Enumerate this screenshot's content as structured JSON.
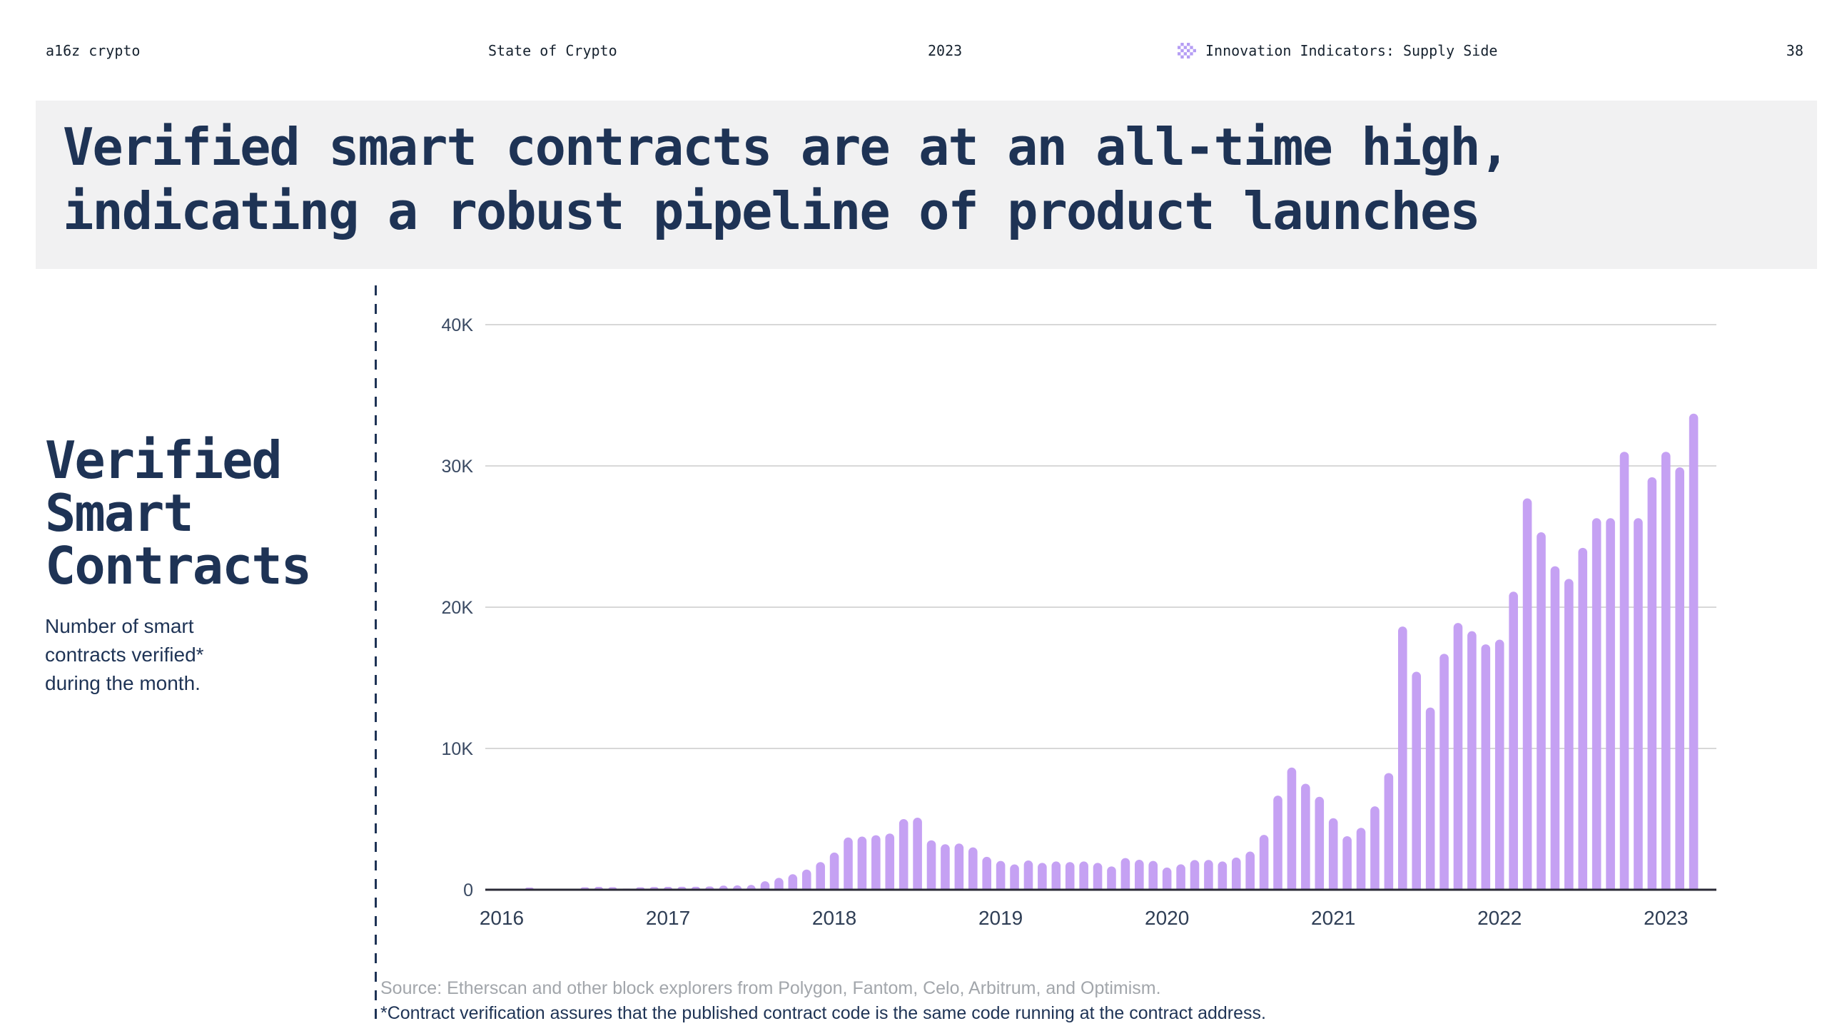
{
  "header": {
    "brand": "a16z crypto",
    "report": "State of Crypto",
    "year": "2023",
    "section": "Innovation Indicators: Supply Side",
    "page": "38"
  },
  "title": {
    "line1": "Verified smart contracts are at an all-time high,",
    "line2": "indicating a robust pipeline of product launches"
  },
  "sidebar": {
    "heading": "Verified\nSmart\nContracts",
    "description": "Number of smart\ncontracts verified*\nduring the month."
  },
  "footer": {
    "source": "Source: Etherscan and other block explorers from Polygon, Fantom, Celo, Arbitrum, and Optimism.",
    "footnote": "*Contract verification assures that the published contract code is the same code running at the contract address."
  },
  "colors": {
    "navy": "#1e3355",
    "bar_purple": "#c5a1f3",
    "icon_purple": "#b59df4",
    "band_gray": "#f1f1f2",
    "grid_gray": "#d8d8d8",
    "axis_dark": "#2a2a36",
    "tick_label": "#3a4a63",
    "source_gray": "#a2a6ab"
  },
  "chart_data": {
    "type": "bar",
    "title": "Verified Smart Contracts",
    "description": "Number of smart contracts verified during the month",
    "xlabel": "",
    "ylabel": "",
    "ylim": [
      0,
      40000
    ],
    "y_ticks": [
      "0",
      "10K",
      "20K",
      "30K",
      "40K"
    ],
    "y_tick_values": [
      0,
      10000,
      20000,
      30000,
      40000
    ],
    "x_tick_years": [
      "2016",
      "2017",
      "2018",
      "2019",
      "2020",
      "2021",
      "2022",
      "2023"
    ],
    "grid": "horizontal",
    "legend": "none",
    "bar_color": "#c5a1f3",
    "series": [
      {
        "year": 2016,
        "values": [
          20,
          30,
          150,
          40,
          40,
          50,
          170,
          200,
          180,
          80,
          170,
          190
        ]
      },
      {
        "year": 2017,
        "values": [
          200,
          210,
          210,
          230,
          290,
          310,
          340,
          600,
          840,
          1100,
          1430,
          1960
        ]
      },
      {
        "year": 2018,
        "values": [
          2630,
          3700,
          3760,
          3860,
          3980,
          5000,
          5100,
          3500,
          3220,
          3270,
          3000,
          2330
        ]
      },
      {
        "year": 2019,
        "values": [
          2040,
          1790,
          2070,
          1900,
          2000,
          1960,
          2000,
          1900,
          1650,
          2240,
          2120,
          2040
        ]
      },
      {
        "year": 2020,
        "values": [
          1570,
          1800,
          2100,
          2110,
          2000,
          2280,
          2700,
          3880,
          6660,
          8650,
          7500,
          6580
        ]
      },
      {
        "year": 2021,
        "values": [
          5060,
          3790,
          4380,
          5900,
          8260,
          18630,
          15430,
          12900,
          16700,
          18880,
          18300,
          17370
        ]
      },
      {
        "year": 2022,
        "values": [
          17700,
          21100,
          27700,
          25300,
          22900,
          22000,
          24200,
          26300,
          26300,
          31000,
          26300,
          29200
        ]
      },
      {
        "year": 2023,
        "values": [
          31000,
          29900,
          33700
        ]
      }
    ]
  }
}
